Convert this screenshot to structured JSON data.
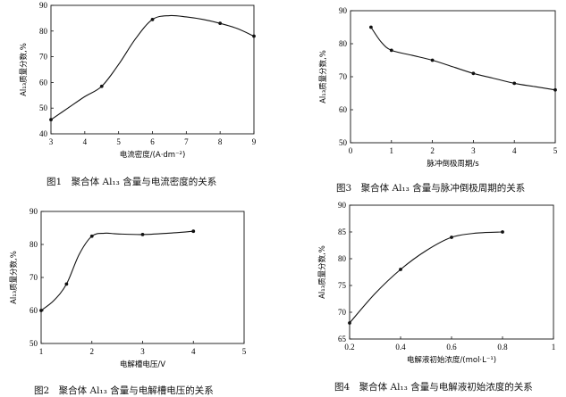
{
  "figures": [
    {
      "caption": "图1　聚合体 Al₁₃ 含量与电流密度的关系"
    },
    {
      "caption": "图3　聚合体 Al₁₃ 含量与脉冲倒极周期的关系"
    },
    {
      "caption": "图2　聚合体 Al₁₃ 含量与电解槽电压的关系"
    },
    {
      "caption": "图4　聚合体 Al₁₃ 含量与电解液初始浓度的关系"
    }
  ],
  "chart_data": [
    {
      "type": "line",
      "xlabel": "电流密度/(A·dm⁻²)",
      "ylabel": "Al₁₃质量分数,%",
      "xlim": [
        3,
        9
      ],
      "ylim": [
        40,
        90
      ],
      "xticks": [
        3,
        4,
        5,
        6,
        7,
        8,
        9
      ],
      "yticks": [
        40,
        50,
        60,
        70,
        80,
        90
      ],
      "x": [
        3,
        4.5,
        6,
        8,
        9
      ],
      "y": [
        45.5,
        58.5,
        84.5,
        83,
        78
      ],
      "curve_x": [
        3,
        3.5,
        4,
        4.5,
        5,
        5.5,
        6,
        6.5,
        7,
        7.5,
        8,
        8.5,
        9
      ],
      "curve_y": [
        45.5,
        50,
        54.5,
        58.5,
        67,
        77,
        84.5,
        86,
        85.5,
        84.5,
        83,
        81,
        78
      ],
      "grid": false
    },
    {
      "type": "line",
      "xlabel": "脉冲倒极周期/s",
      "ylabel": "Al₁₃质量分数,%",
      "xlim": [
        0,
        5
      ],
      "ylim": [
        50,
        90
      ],
      "xticks": [
        0,
        1,
        2,
        3,
        4,
        5
      ],
      "yticks": [
        50,
        60,
        70,
        80,
        90
      ],
      "x": [
        0.5,
        1,
        2,
        3,
        4,
        5
      ],
      "y": [
        85,
        78,
        75,
        71,
        68,
        66
      ],
      "curve_x": [
        0.5,
        0.75,
        1,
        1.5,
        2,
        2.5,
        3,
        3.5,
        4,
        4.5,
        5
      ],
      "curve_y": [
        85,
        80.5,
        78,
        76.5,
        75,
        73,
        71,
        69.5,
        68,
        67,
        66
      ],
      "grid": false
    },
    {
      "type": "line",
      "xlabel": "电解槽电压/V",
      "ylabel": "Al₁₃质量分数,%",
      "xlim": [
        1,
        5
      ],
      "ylim": [
        50,
        90
      ],
      "xticks": [
        1,
        2,
        3,
        4,
        5
      ],
      "yticks": [
        50,
        60,
        70,
        80,
        90
      ],
      "x": [
        1,
        1.5,
        2,
        3,
        4
      ],
      "y": [
        60,
        68,
        82.5,
        83,
        84
      ],
      "curve_x": [
        1,
        1.25,
        1.5,
        1.75,
        2,
        2.25,
        2.5,
        3,
        3.5,
        4
      ],
      "curve_y": [
        60,
        63,
        68,
        77,
        82.5,
        83.4,
        83.2,
        83,
        83.4,
        84
      ],
      "grid": false
    },
    {
      "type": "line",
      "xlabel": "电解液初始浓度/(mol·L⁻¹)",
      "ylabel": "Al₁₃质量分数,%",
      "xlim": [
        0.2,
        1.0
      ],
      "ylim": [
        65,
        90
      ],
      "xticks": [
        0.2,
        0.4,
        0.6,
        0.8,
        1.0
      ],
      "yticks": [
        65,
        70,
        75,
        80,
        85,
        90
      ],
      "x": [
        0.2,
        0.4,
        0.6,
        0.8
      ],
      "y": [
        68,
        78,
        84,
        85
      ],
      "curve_x": [
        0.2,
        0.3,
        0.4,
        0.5,
        0.6,
        0.7,
        0.8
      ],
      "curve_y": [
        68,
        73.5,
        78,
        81.5,
        84,
        84.8,
        85
      ],
      "grid": false
    }
  ]
}
